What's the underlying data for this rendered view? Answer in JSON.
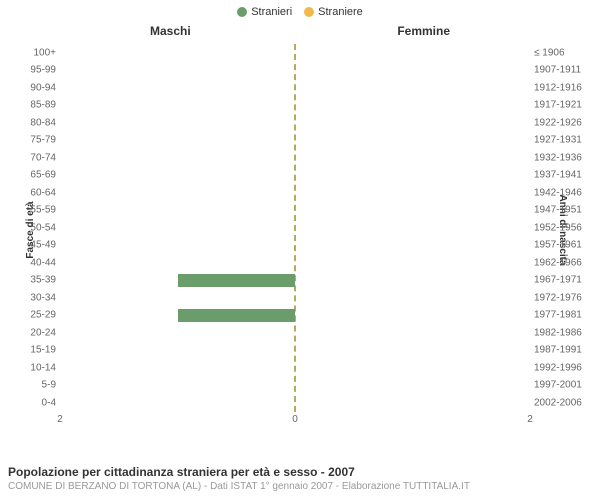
{
  "legend": {
    "items": [
      {
        "label": "Stranieri",
        "color": "#6b9d6b"
      },
      {
        "label": "Straniere",
        "color": "#f2b84b"
      }
    ]
  },
  "chart": {
    "type": "pyramid-bar",
    "panel_left_title": "Maschi",
    "panel_right_title": "Femmine",
    "y_axis_left_title": "Fasce di età",
    "y_axis_right_title": "Anni di nascita",
    "xlim": 2,
    "x_ticks": [
      2,
      0,
      2
    ],
    "center_line_color": "#b8a85a",
    "bar_color_m": "#6b9d6b",
    "bar_color_f": "#f2b84b",
    "background_color": "#ffffff",
    "label_color": "#666666",
    "title_color": "#333333",
    "label_fontsize": 10,
    "title_fontsize": 12,
    "rows": [
      {
        "age": "100+",
        "birth": "≤ 1906",
        "m": 0,
        "f": 0
      },
      {
        "age": "95-99",
        "birth": "1907-1911",
        "m": 0,
        "f": 0
      },
      {
        "age": "90-94",
        "birth": "1912-1916",
        "m": 0,
        "f": 0
      },
      {
        "age": "85-89",
        "birth": "1917-1921",
        "m": 0,
        "f": 0
      },
      {
        "age": "80-84",
        "birth": "1922-1926",
        "m": 0,
        "f": 0
      },
      {
        "age": "75-79",
        "birth": "1927-1931",
        "m": 0,
        "f": 0
      },
      {
        "age": "70-74",
        "birth": "1932-1936",
        "m": 0,
        "f": 0
      },
      {
        "age": "65-69",
        "birth": "1937-1941",
        "m": 0,
        "f": 0
      },
      {
        "age": "60-64",
        "birth": "1942-1946",
        "m": 0,
        "f": 0
      },
      {
        "age": "55-59",
        "birth": "1947-1951",
        "m": 0,
        "f": 0
      },
      {
        "age": "50-54",
        "birth": "1952-1956",
        "m": 0,
        "f": 0
      },
      {
        "age": "45-49",
        "birth": "1957-1961",
        "m": 0,
        "f": 0
      },
      {
        "age": "40-44",
        "birth": "1962-1966",
        "m": 0,
        "f": 0
      },
      {
        "age": "35-39",
        "birth": "1967-1971",
        "m": 1,
        "f": 0
      },
      {
        "age": "30-34",
        "birth": "1972-1976",
        "m": 0,
        "f": 0
      },
      {
        "age": "25-29",
        "birth": "1977-1981",
        "m": 1,
        "f": 0
      },
      {
        "age": "20-24",
        "birth": "1982-1986",
        "m": 0,
        "f": 0
      },
      {
        "age": "15-19",
        "birth": "1987-1991",
        "m": 0,
        "f": 0
      },
      {
        "age": "10-14",
        "birth": "1992-1996",
        "m": 0,
        "f": 0
      },
      {
        "age": "5-9",
        "birth": "1997-2001",
        "m": 0,
        "f": 0
      },
      {
        "age": "0-4",
        "birth": "2002-2006",
        "m": 0,
        "f": 0
      }
    ]
  },
  "caption": {
    "title": "Popolazione per cittadinanza straniera per età e sesso - 2007",
    "subtitle": "COMUNE DI BERZANO DI TORTONA (AL) - Dati ISTAT 1° gennaio 2007 - Elaborazione TUTTITALIA.IT"
  }
}
